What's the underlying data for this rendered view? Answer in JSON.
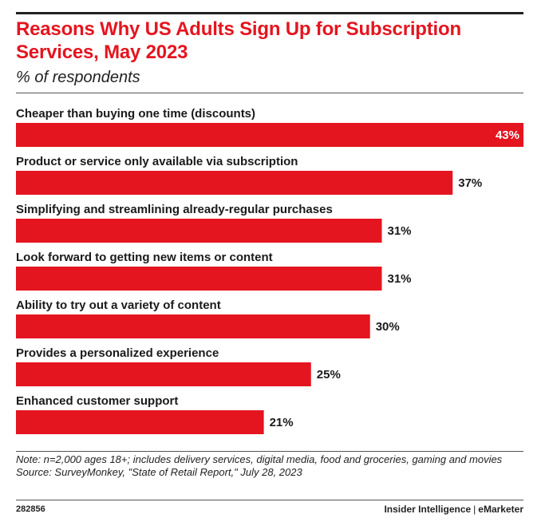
{
  "chart_data": {
    "type": "bar",
    "orientation": "horizontal",
    "title": "Reasons Why US Adults Sign Up for Subscription Services, May 2023",
    "subtitle": "% of respondents",
    "categories": [
      "Cheaper than buying one time (discounts)",
      "Product or service only available via subscription",
      "Simplifying and streamlining already-regular purchases",
      "Look forward to getting new items or content",
      "Ability to try out a variety of content",
      "Provides a personalized experience",
      "Enhanced customer support"
    ],
    "values": [
      43,
      37,
      31,
      31,
      30,
      25,
      21
    ],
    "value_labels": [
      "43%",
      "37%",
      "31%",
      "31%",
      "30%",
      "25%",
      "21%"
    ],
    "xlim": [
      0,
      43
    ],
    "grid": false,
    "legend": "none",
    "bar_color": "#e4151f"
  },
  "note": "Note: n=2,000 ages 18+; includes delivery services, digital media, food and groceries, gaming and movies",
  "source": "Source: SurveyMonkey, \"State of Retail Report,\" July 28, 2023",
  "chart_id": "282856",
  "branding": {
    "left": "Insider Intelligence",
    "separator": "|",
    "right": "eMarketer"
  }
}
